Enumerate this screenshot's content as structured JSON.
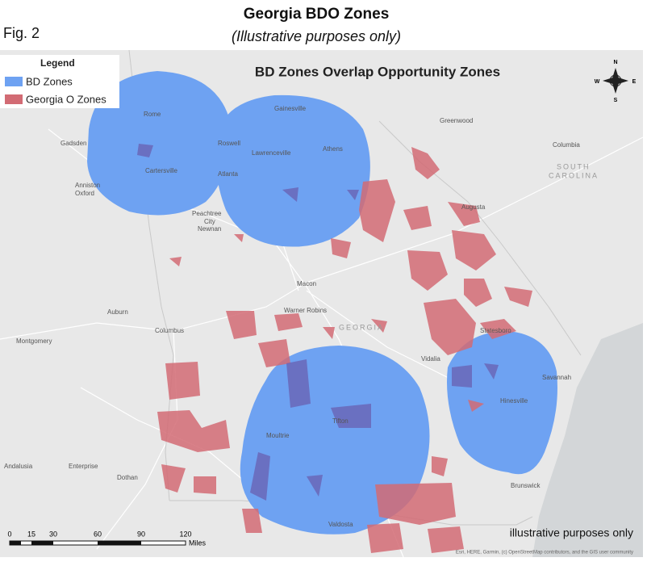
{
  "header": {
    "title": "Georgia BDO Zones",
    "subtitle": "(Illustrative purposes only)",
    "figure_label": "Fig. 2"
  },
  "map": {
    "title": "BD Zones Overlap Opportunity Zones",
    "legend": {
      "title": "Legend",
      "items": [
        {
          "label": "BD Zones"
        },
        {
          "label": "Georgia O Zones"
        }
      ]
    },
    "compass": {
      "north": "N",
      "east": "E",
      "south": "S",
      "west": "W"
    },
    "places": [
      "Gadsden",
      "Anniston",
      "Oxford",
      "Rome",
      "Cartersville",
      "Roswell",
      "Lawrenceville",
      "Atlanta",
      "Gainesville",
      "Athens",
      "Greenwood",
      "Columbia",
      "SOUTH",
      "CAROLINA",
      "Augusta",
      "Peachtree",
      "City",
      "Newnan",
      "Macon",
      "Warner Robins",
      "GEORGIA",
      "Auburn",
      "Columbus",
      "Montgomery",
      "Vidalia",
      "Savannah",
      "Hinesville",
      "Statesboro",
      "Tifton",
      "Moultrie",
      "Valdosta",
      "Brunswick",
      "Dothan",
      "Enterprise",
      "Andalusia"
    ],
    "scale_bar": {
      "ticks": [
        "0",
        "15",
        "30",
        "60",
        "90",
        "120"
      ],
      "unit": "Miles"
    },
    "note": "illustrative purposes only",
    "attribution": "Esri, HERE, Garmin, (c) OpenStreetMap contributors, and the GIS user community"
  }
}
